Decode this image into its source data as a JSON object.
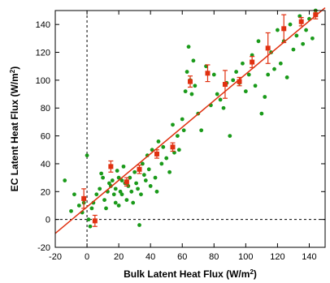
{
  "chart_data": {
    "type": "scatter",
    "title": "",
    "xlabel": "Bulk Latent Heat Flux (W/m",
    "xlabel_sup": "2",
    "xlabel_end": ")",
    "ylabel": "EC Latent Heat Flux (W/m",
    "ylabel_sup": "2",
    "ylabel_end": ")",
    "xlim": [
      -20,
      150
    ],
    "ylim": [
      -20,
      150
    ],
    "xticks": [
      -20,
      0,
      20,
      40,
      60,
      80,
      100,
      120,
      140
    ],
    "yticks": [
      -20,
      0,
      20,
      40,
      60,
      80,
      100,
      120,
      140
    ],
    "grid": false,
    "zero_lines": true,
    "colors": {
      "scatter": "#1a9a1a",
      "binned": "#e03010",
      "fit": "#e03010",
      "axis": "#000000"
    },
    "series": [
      {
        "kind": "scatter",
        "points": [
          [
            -14,
            28
          ],
          [
            -10,
            6
          ],
          [
            -8,
            18
          ],
          [
            -5,
            10
          ],
          [
            -3,
            5
          ],
          [
            -2,
            12
          ],
          [
            0,
            46
          ],
          [
            1,
            0
          ],
          [
            2,
            -5
          ],
          [
            3,
            8
          ],
          [
            4,
            12
          ],
          [
            6,
            18
          ],
          [
            8,
            22
          ],
          [
            9,
            33
          ],
          [
            10,
            30
          ],
          [
            11,
            14
          ],
          [
            12,
            8
          ],
          [
            13,
            20
          ],
          [
            14,
            26
          ],
          [
            15,
            24
          ],
          [
            16,
            28
          ],
          [
            17,
            18
          ],
          [
            18,
            22
          ],
          [
            18,
            12
          ],
          [
            19,
            35
          ],
          [
            20,
            30
          ],
          [
            20,
            10
          ],
          [
            21,
            20
          ],
          [
            22,
            28
          ],
          [
            22,
            18
          ],
          [
            23,
            38
          ],
          [
            24,
            26
          ],
          [
            25,
            14
          ],
          [
            26,
            24
          ],
          [
            27,
            30
          ],
          [
            28,
            20
          ],
          [
            29,
            12
          ],
          [
            30,
            34
          ],
          [
            31,
            26
          ],
          [
            32,
            22
          ],
          [
            33,
            -4
          ],
          [
            34,
            18
          ],
          [
            35,
            40
          ],
          [
            36,
            32
          ],
          [
            37,
            28
          ],
          [
            38,
            46
          ],
          [
            39,
            36
          ],
          [
            40,
            24
          ],
          [
            41,
            50
          ],
          [
            43,
            30
          ],
          [
            44,
            20
          ],
          [
            45,
            56
          ],
          [
            47,
            40
          ],
          [
            48,
            52
          ],
          [
            50,
            44
          ],
          [
            52,
            34
          ],
          [
            54,
            68
          ],
          [
            55,
            48
          ],
          [
            57,
            60
          ],
          [
            58,
            50
          ],
          [
            60,
            72
          ],
          [
            61,
            64
          ],
          [
            62,
            92
          ],
          [
            63,
            106
          ],
          [
            64,
            124
          ],
          [
            65,
            100
          ],
          [
            66,
            90
          ],
          [
            67,
            114
          ],
          [
            68,
            96
          ],
          [
            70,
            76
          ],
          [
            72,
            64
          ],
          [
            75,
            110
          ],
          [
            78,
            82
          ],
          [
            80,
            104
          ],
          [
            82,
            90
          ],
          [
            84,
            86
          ],
          [
            86,
            80
          ],
          [
            88,
            98
          ],
          [
            90,
            60
          ],
          [
            92,
            100
          ],
          [
            94,
            106
          ],
          [
            96,
            98
          ],
          [
            98,
            112
          ],
          [
            100,
            92
          ],
          [
            102,
            104
          ],
          [
            104,
            118
          ],
          [
            106,
            96
          ],
          [
            108,
            128
          ],
          [
            110,
            76
          ],
          [
            112,
            88
          ],
          [
            114,
            104
          ],
          [
            116,
            120
          ],
          [
            118,
            108
          ],
          [
            120,
            136
          ],
          [
            122,
            112
          ],
          [
            124,
            128
          ],
          [
            126,
            102
          ],
          [
            128,
            140
          ],
          [
            130,
            122
          ],
          [
            132,
            132
          ],
          [
            134,
            146
          ],
          [
            136,
            126
          ],
          [
            138,
            136
          ],
          [
            140,
            144
          ],
          [
            142,
            130
          ],
          [
            144,
            150
          ]
        ]
      },
      {
        "kind": "binned",
        "points": [
          [
            -2,
            15,
            7
          ],
          [
            5,
            -1,
            4
          ],
          [
            15,
            38,
            4
          ],
          [
            25,
            27,
            3
          ],
          [
            33,
            36,
            3
          ],
          [
            44,
            47,
            3
          ],
          [
            54,
            52,
            3
          ],
          [
            65,
            99,
            4
          ],
          [
            76,
            105,
            6
          ],
          [
            87,
            97,
            10
          ],
          [
            96,
            99,
            3
          ],
          [
            104,
            113,
            4
          ],
          [
            114,
            123,
            11
          ],
          [
            124,
            137,
            10
          ],
          [
            135,
            142,
            3
          ],
          [
            144,
            147,
            3
          ]
        ]
      },
      {
        "kind": "fit",
        "x": [
          -20,
          150
        ],
        "y": [
          -10,
          152
        ]
      }
    ]
  }
}
